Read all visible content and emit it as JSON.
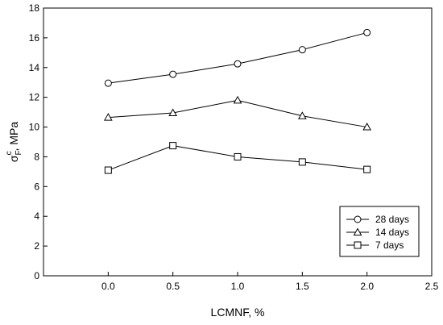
{
  "chart_data": {
    "type": "line",
    "title": "",
    "xlabel": "LCMNF, %",
    "ylabel": {
      "sigma": "σ",
      "subscript": "F",
      "superscript": "c",
      "suffix": ", MPa"
    },
    "xlim": [
      -0.5,
      2.5
    ],
    "ylim": [
      0,
      18
    ],
    "xticks": [
      "0.0",
      "0.5",
      "1.0",
      "1.5",
      "2.0",
      "2.5"
    ],
    "yticks": [
      "0",
      "2",
      "4",
      "6",
      "8",
      "10",
      "12",
      "14",
      "16",
      "18"
    ],
    "grid": false,
    "legend_position": "bottom-right",
    "x": [
      0.0,
      0.5,
      1.0,
      1.5,
      2.0
    ],
    "series": [
      {
        "name": "28 days",
        "marker": "circle",
        "values": [
          12.95,
          13.55,
          14.25,
          15.2,
          16.35
        ]
      },
      {
        "name": "14 days",
        "marker": "triangle",
        "values": [
          10.65,
          10.95,
          11.8,
          10.75,
          10.0
        ]
      },
      {
        "name": "7 days",
        "marker": "square",
        "values": [
          7.1,
          8.75,
          8.0,
          7.65,
          7.15
        ]
      }
    ]
  }
}
